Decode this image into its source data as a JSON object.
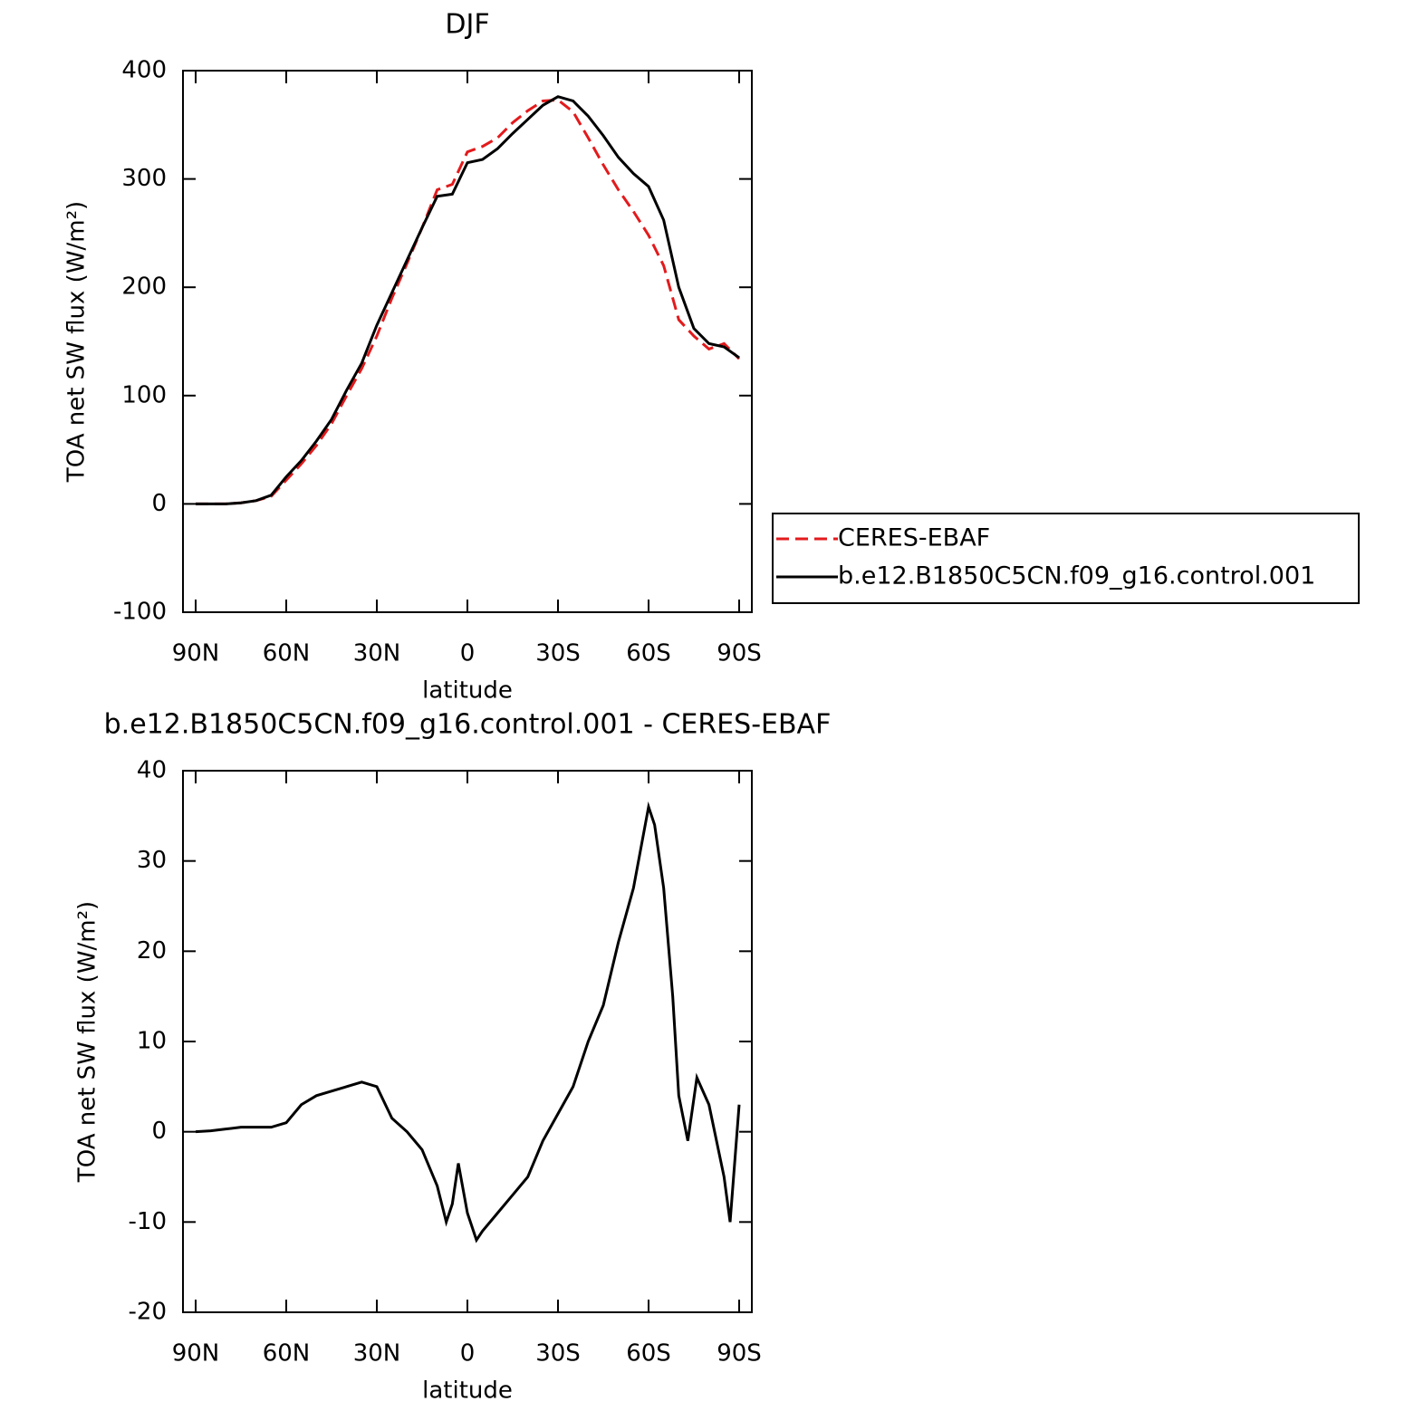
{
  "chart_data": [
    {
      "type": "line",
      "title": "DJF",
      "xlabel": "latitude",
      "ylabel": "TOA net SW flux (W/m²)",
      "xlim": [
        94.2,
        -94.2
      ],
      "xticks": [
        {
          "value": 90,
          "label": "90N"
        },
        {
          "value": 60,
          "label": "60N"
        },
        {
          "value": 30,
          "label": "30N"
        },
        0,
        {
          "value": -30,
          "label": "30S"
        },
        {
          "value": -60,
          "label": "60S"
        },
        {
          "value": -90,
          "label": "90S"
        }
      ],
      "ylim": [
        -100,
        400
      ],
      "yticks": [
        -100,
        0,
        100,
        200,
        300,
        400
      ],
      "grid": false,
      "legend": "right",
      "x": [
        90,
        85,
        80,
        75,
        70,
        65,
        60,
        55,
        50,
        45,
        40,
        35,
        30,
        25,
        20,
        15,
        10,
        5,
        0,
        -5,
        -10,
        -15,
        -20,
        -25,
        -30,
        -35,
        -40,
        -45,
        -50,
        -55,
        -60,
        -65,
        -70,
        -75,
        -80,
        -85,
        -90
      ],
      "series": [
        {
          "name": "CERES-EBAF",
          "color": "#e31a1c",
          "dash": true,
          "values": [
            0,
            0,
            0,
            1,
            3,
            7,
            22,
            37,
            54,
            74,
            100,
            125,
            155,
            190,
            222,
            255,
            290,
            295,
            325,
            330,
            338,
            352,
            363,
            372,
            373,
            362,
            338,
            313,
            290,
            270,
            248,
            220,
            170,
            155,
            143,
            148,
            134
          ]
        },
        {
          "name": "b.e12.B1850C5CN.f09_g16.control.001",
          "color": "#000000",
          "dash": false,
          "values": [
            0,
            0,
            0,
            1,
            3,
            8,
            25,
            40,
            58,
            78,
            105,
            130,
            165,
            195,
            225,
            255,
            284,
            286,
            315,
            318,
            328,
            342,
            355,
            368,
            376,
            372,
            358,
            340,
            320,
            305,
            293,
            262,
            200,
            162,
            148,
            145,
            135
          ]
        }
      ]
    },
    {
      "type": "line",
      "title": "b.e12.B1850C5CN.f09_g16.control.001 - CERES-EBAF",
      "xlabel": "latitude",
      "ylabel": "TOA net SW flux (W/m²)",
      "xlim": [
        94.2,
        -94.2
      ],
      "xticks": [
        {
          "value": 90,
          "label": "90N"
        },
        {
          "value": 60,
          "label": "60N"
        },
        {
          "value": 30,
          "label": "30N"
        },
        0,
        {
          "value": -30,
          "label": "30S"
        },
        {
          "value": -60,
          "label": "60S"
        },
        {
          "value": -90,
          "label": "90S"
        }
      ],
      "ylim": [
        -20,
        40
      ],
      "yticks": [
        -20,
        -10,
        0,
        10,
        20,
        30,
        40
      ],
      "grid": false,
      "color": "#000000",
      "x": [
        90,
        85,
        80,
        75,
        70,
        65,
        60,
        55,
        50,
        45,
        40,
        35,
        30,
        25,
        20,
        15,
        10,
        7,
        5,
        3,
        0,
        -3,
        -5,
        -10,
        -15,
        -20,
        -25,
        -30,
        -35,
        -40,
        -45,
        -50,
        -55,
        -60,
        -62,
        -65,
        -68,
        -70,
        -73,
        -76,
        -80,
        -85,
        -87,
        -90
      ],
      "values": [
        0,
        0.1,
        0.3,
        0.5,
        0.5,
        0.5,
        1,
        3,
        4,
        4.5,
        5,
        5.5,
        5,
        1.5,
        0,
        -2,
        -6,
        -10,
        -8,
        -3.5,
        -9,
        -12,
        -11,
        -9,
        -7,
        -5,
        -1,
        2,
        5,
        10,
        14,
        21,
        27,
        36,
        34,
        27,
        15,
        4,
        -1,
        6,
        3,
        -5,
        -10,
        3
      ]
    }
  ]
}
